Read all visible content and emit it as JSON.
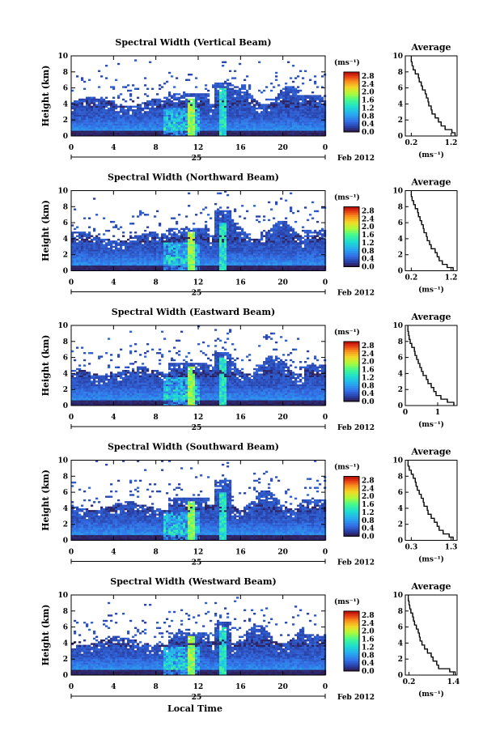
{
  "chart_data": [
    {
      "type": "heatmap",
      "title": "Spectral Width (Vertical Beam)",
      "ylabel": "Height (km)",
      "ylim": [
        0,
        10
      ],
      "yticks": [
        "0",
        "2",
        "4",
        "6",
        "8",
        "10"
      ],
      "xlim": [
        0,
        24
      ],
      "xticks": [
        "0",
        "4",
        "8",
        "12",
        "16",
        "20",
        "0"
      ],
      "date_day": "25",
      "date_month_year": "Feb 2012",
      "colorbar": {
        "unit": "(ms⁻¹)",
        "ticks": [
          "0.0",
          "0.4",
          "0.8",
          "1.2",
          "1.6",
          "2.0",
          "2.4",
          "2.8"
        ],
        "range": [
          0,
          3.0
        ]
      },
      "profile": {
        "title": "Average",
        "xticks": [
          "0.2",
          "1.2"
        ],
        "xlim": [
          0.05,
          1.35
        ],
        "xlabel": "(ms⁻¹)",
        "height_km": [
          0.2,
          0.6,
          1.0,
          1.5,
          2.0,
          2.5,
          3.0,
          3.5,
          4.0,
          4.5,
          5.0,
          5.5,
          6.0,
          6.5,
          7.0,
          7.5,
          8.0,
          8.5,
          9.0,
          9.5
        ],
        "values": [
          1.3,
          1.22,
          1.05,
          0.95,
          0.88,
          0.8,
          0.72,
          0.7,
          0.64,
          0.62,
          0.58,
          0.55,
          0.48,
          0.45,
          0.4,
          0.38,
          0.3,
          0.25,
          0.22,
          0.2
        ]
      }
    },
    {
      "type": "heatmap",
      "title": "Spectral Width (Northward Beam)",
      "ylabel": "Height (km)",
      "ylim": [
        0,
        10
      ],
      "yticks": [
        "0",
        "2",
        "4",
        "6",
        "8",
        "10"
      ],
      "xlim": [
        0,
        24
      ],
      "xticks": [
        "0",
        "4",
        "8",
        "12",
        "16",
        "20",
        "0"
      ],
      "date_day": "25",
      "date_month_year": "Feb 2012",
      "colorbar": {
        "unit": "(ms⁻¹)",
        "ticks": [
          "0.0",
          "0.4",
          "0.8",
          "1.2",
          "1.6",
          "2.0",
          "2.4",
          "2.8"
        ],
        "range": [
          0,
          3.0
        ]
      },
      "profile": {
        "title": "Average",
        "xticks": [
          "0.2",
          "1.2"
        ],
        "xlim": [
          0.05,
          1.35
        ],
        "xlabel": "(ms⁻¹)",
        "height_km": [
          0.2,
          0.6,
          1.0,
          1.5,
          2.0,
          2.5,
          3.0,
          3.5,
          4.0,
          4.5,
          5.0,
          5.5,
          6.0,
          6.5,
          7.0,
          7.5,
          8.0,
          8.5,
          9.0,
          9.5
        ],
        "values": [
          1.25,
          1.1,
          0.98,
          0.9,
          0.85,
          0.8,
          0.7,
          0.66,
          0.6,
          0.58,
          0.52,
          0.5,
          0.46,
          0.42,
          0.38,
          0.36,
          0.3,
          0.26,
          0.22,
          0.2
        ]
      }
    },
    {
      "type": "heatmap",
      "title": "Spectral Width (Eastward Beam)",
      "ylabel": "Height (km)",
      "ylim": [
        0,
        10
      ],
      "yticks": [
        "0",
        "2",
        "4",
        "6",
        "8",
        "10"
      ],
      "xlim": [
        0,
        24
      ],
      "xticks": [
        "0",
        "4",
        "8",
        "12",
        "16",
        "20",
        "0"
      ],
      "date_day": "25",
      "date_month_year": "Feb 2012",
      "colorbar": {
        "unit": "(ms⁻¹)",
        "ticks": [
          "0.0",
          "0.4",
          "0.8",
          "1.2",
          "1.6",
          "2.0",
          "2.4",
          "2.8"
        ],
        "range": [
          0,
          3.0
        ]
      },
      "profile": {
        "title": "Average",
        "xticks": [
          "0",
          "1"
        ],
        "xlim": [
          0,
          1.6
        ],
        "xlabel": "(ms⁻¹)",
        "height_km": [
          0.2,
          0.6,
          1.0,
          1.5,
          2.0,
          2.5,
          3.0,
          3.5,
          4.0,
          4.5,
          5.0,
          5.5,
          6.0,
          6.5,
          7.0,
          7.5,
          8.0,
          8.5,
          9.0,
          9.5
        ],
        "values": [
          1.5,
          1.3,
          1.1,
          0.95,
          0.88,
          0.8,
          0.7,
          0.65,
          0.55,
          0.5,
          0.45,
          0.4,
          0.35,
          0.3,
          0.28,
          0.2,
          0.15,
          0.12,
          0.1,
          0.08
        ]
      }
    },
    {
      "type": "heatmap",
      "title": "Spectral Width (Southward Beam)",
      "ylabel": "Height (km)",
      "ylim": [
        0,
        10
      ],
      "yticks": [
        "0",
        "2",
        "4",
        "6",
        "8",
        "10"
      ],
      "xlim": [
        0,
        24
      ],
      "xticks": [
        "0",
        "4",
        "8",
        "12",
        "16",
        "20",
        "0"
      ],
      "date_day": "25",
      "date_month_year": "Feb 2012",
      "colorbar": {
        "unit": "(ms⁻¹)",
        "ticks": [
          "0.0",
          "0.4",
          "0.8",
          "1.2",
          "1.6",
          "2.0",
          "2.4",
          "2.8"
        ],
        "range": [
          0,
          3.0
        ]
      },
      "profile": {
        "title": "Average",
        "xticks": [
          "0.3",
          "1.3"
        ],
        "xlim": [
          0.15,
          1.45
        ],
        "xlabel": "(ms⁻¹)",
        "height_km": [
          0.2,
          0.6,
          1.0,
          1.5,
          2.0,
          2.5,
          3.0,
          3.5,
          4.0,
          4.5,
          5.0,
          5.5,
          6.0,
          6.5,
          7.0,
          7.5,
          8.0,
          8.5,
          9.0,
          9.5
        ],
        "values": [
          1.35,
          1.25,
          1.1,
          1.0,
          0.95,
          0.88,
          0.8,
          0.72,
          0.7,
          0.62,
          0.6,
          0.55,
          0.5,
          0.45,
          0.42,
          0.4,
          0.35,
          0.3,
          0.25,
          0.22
        ]
      }
    },
    {
      "type": "heatmap",
      "title": "Spectral Width (Westward Beam)",
      "ylabel": "Height (km)",
      "ylim": [
        0,
        10
      ],
      "yticks": [
        "0",
        "2",
        "4",
        "6",
        "8",
        "10"
      ],
      "xlim": [
        0,
        24
      ],
      "xticks": [
        "0",
        "4",
        "8",
        "12",
        "16",
        "20",
        "0"
      ],
      "xlabel": "Local Time",
      "date_day": "25",
      "date_month_year": "Feb 2012",
      "colorbar": {
        "unit": "(ms⁻¹)",
        "ticks": [
          "0.0",
          "0.4",
          "0.8",
          "1.2",
          "1.6",
          "2.0",
          "2.4",
          "2.8"
        ],
        "range": [
          0,
          3.0
        ]
      },
      "profile": {
        "title": "Average",
        "xticks": [
          "0.2",
          "1.4"
        ],
        "xlim": [
          0.1,
          1.5
        ],
        "xlabel": "(ms⁻¹)",
        "height_km": [
          0.2,
          0.6,
          1.0,
          1.5,
          2.0,
          2.5,
          3.0,
          3.5,
          4.0,
          4.5,
          5.0,
          5.5,
          6.0,
          6.5,
          7.0,
          7.5,
          8.0,
          8.5,
          9.0,
          9.5
        ],
        "values": [
          1.45,
          1.3,
          1.0,
          0.95,
          0.85,
          0.8,
          0.7,
          0.62,
          0.55,
          0.5,
          0.48,
          0.45,
          0.4,
          0.35,
          0.32,
          0.3,
          0.25,
          0.22,
          0.2,
          0.18
        ]
      }
    }
  ]
}
